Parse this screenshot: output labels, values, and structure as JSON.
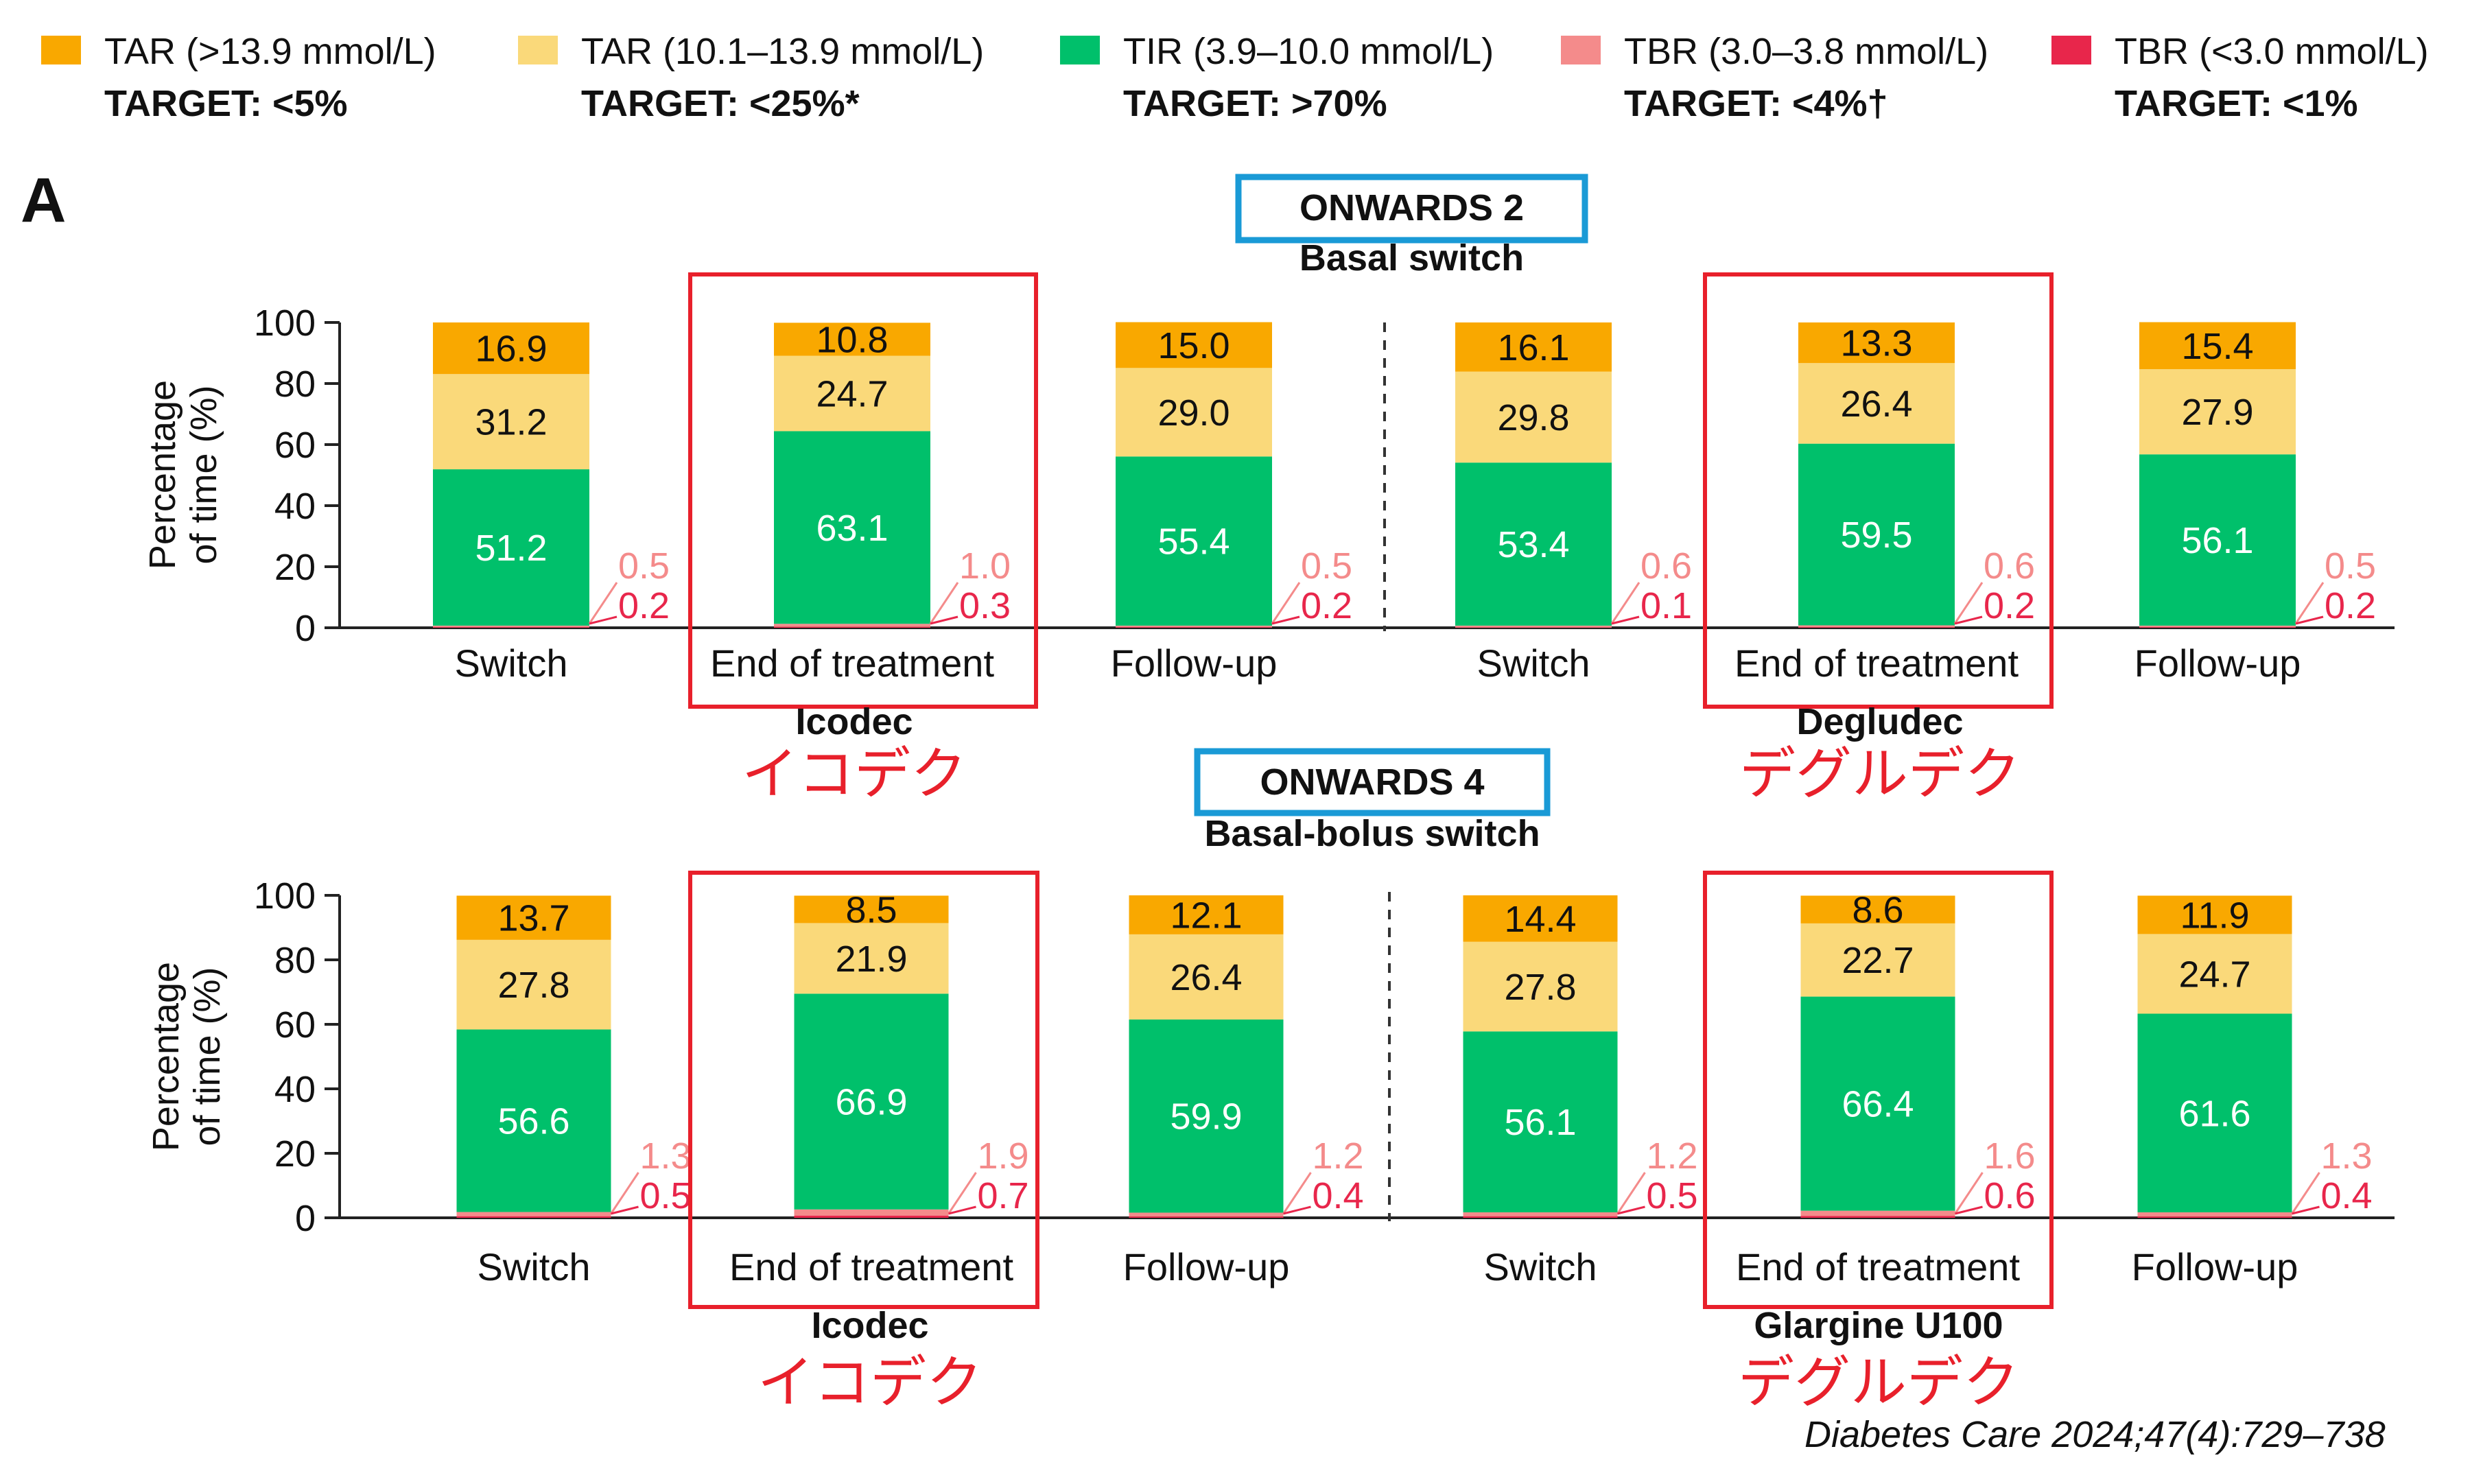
{
  "panel_label": "A",
  "legend": [
    {
      "label": "TAR (>13.9 mmol/L)",
      "target": "TARGET: <5%",
      "color": "#f9a800"
    },
    {
      "label": "TAR (10.1–13.9 mmol/L)",
      "target": "TARGET: <25%*",
      "color": "#fad97a"
    },
    {
      "label": "TIR (3.9–10.0 mmol/L)",
      "target": "TARGET: >70%",
      "color": "#00c06b"
    },
    {
      "label": "TBR (3.0–3.8 mmol/L)",
      "target": "TARGET: <4%†",
      "color": "#f48b8b"
    },
    {
      "label": "TBR (<3.0 mmol/L)",
      "target": "TARGET: <1%",
      "color": "#e8264b"
    }
  ],
  "citation": "Diabetes Care 2024;47(4):729–738",
  "chart_data": [
    {
      "type": "bar",
      "stacked": true,
      "title": "ONWARDS 2",
      "subtitle": "Basal switch",
      "ylabel": [
        "Percentage",
        "of time (%)"
      ],
      "ylim": [
        0,
        100
      ],
      "yticks": [
        0,
        20,
        40,
        60,
        80,
        100
      ],
      "categories": [
        "Switch",
        "End of treatment",
        "Follow-up",
        "Switch",
        "End of treatment",
        "Follow-up"
      ],
      "groups": [
        {
          "name": "Icodec",
          "note": "イコデク"
        },
        {
          "name": "Degludec",
          "note": "デグルデク"
        }
      ],
      "highlighted": [
        1,
        4
      ],
      "series": [
        {
          "name": "TBR (<3.0 mmol/L)",
          "values": [
            0.2,
            0.3,
            0.2,
            0.1,
            0.2,
            0.2
          ]
        },
        {
          "name": "TBR (3.0–3.8 mmol/L)",
          "values": [
            0.5,
            1.0,
            0.5,
            0.6,
            0.6,
            0.5
          ]
        },
        {
          "name": "TIR (3.9–10.0 mmol/L)",
          "values": [
            51.2,
            63.1,
            55.4,
            53.4,
            59.5,
            56.1
          ]
        },
        {
          "name": "TAR (10.1–13.9 mmol/L)",
          "values": [
            31.2,
            24.7,
            29.0,
            29.8,
            26.4,
            27.9
          ]
        },
        {
          "name": "TAR (>13.9 mmol/L)",
          "values": [
            16.9,
            10.8,
            15.0,
            16.1,
            13.3,
            15.4
          ]
        }
      ],
      "labels": {
        "tar_high": [
          "16.9",
          "10.8",
          "15.0",
          "16.1",
          "13.3",
          "15.4"
        ],
        "tar_mid": [
          "31.2",
          "24.7",
          "29.0",
          "29.8",
          "26.4",
          "27.9"
        ],
        "tir": [
          "51.2",
          "63.1",
          "55.4",
          "53.4",
          "59.5",
          "56.1"
        ],
        "tbr_mid": [
          "0.5",
          "1.0",
          "0.5",
          "0.6",
          "0.6",
          "0.5"
        ],
        "tbr_low": [
          "0.2",
          "0.3",
          "0.2",
          "0.1",
          "0.2",
          "0.2"
        ]
      }
    },
    {
      "type": "bar",
      "stacked": true,
      "title": "ONWARDS 4",
      "subtitle": "Basal-bolus switch",
      "ylabel": [
        "Percentage",
        "of time (%)"
      ],
      "ylim": [
        0,
        100
      ],
      "yticks": [
        0,
        20,
        40,
        60,
        80,
        100
      ],
      "categories": [
        "Switch",
        "End of treatment",
        "Follow-up",
        "Switch",
        "End of treatment",
        "Follow-up"
      ],
      "groups": [
        {
          "name": "Icodec",
          "note": "イコデク"
        },
        {
          "name": "Glargine U100",
          "note": "デグルデク"
        }
      ],
      "highlighted": [
        1,
        4
      ],
      "series": [
        {
          "name": "TBR (<3.0 mmol/L)",
          "values": [
            0.5,
            0.7,
            0.4,
            0.5,
            0.6,
            0.4
          ]
        },
        {
          "name": "TBR (3.0–3.8 mmol/L)",
          "values": [
            1.3,
            1.9,
            1.2,
            1.2,
            1.6,
            1.3
          ]
        },
        {
          "name": "TIR (3.9–10.0 mmol/L)",
          "values": [
            56.6,
            66.9,
            59.9,
            56.1,
            66.4,
            61.6
          ]
        },
        {
          "name": "TAR (10.1–13.9 mmol/L)",
          "values": [
            27.8,
            21.9,
            26.4,
            27.8,
            22.7,
            24.7
          ]
        },
        {
          "name": "TAR (>13.9 mmol/L)",
          "values": [
            13.7,
            8.5,
            12.1,
            14.4,
            8.6,
            11.9
          ]
        }
      ],
      "labels": {
        "tar_high": [
          "13.7",
          "8.5",
          "12.1",
          "14.4",
          "8.6",
          "11.9"
        ],
        "tar_mid": [
          "27.8",
          "21.9",
          "26.4",
          "27.8",
          "22.7",
          "24.7"
        ],
        "tir": [
          "56.6",
          "66.9",
          "59.9",
          "56.1",
          "66.4",
          "61.6"
        ],
        "tbr_mid": [
          "1.3",
          "1.9",
          "1.2",
          "1.2",
          "1.6",
          "1.3"
        ],
        "tbr_low": [
          "0.5",
          "0.7",
          "0.4",
          "0.5",
          "0.6",
          "0.4"
        ]
      }
    }
  ]
}
